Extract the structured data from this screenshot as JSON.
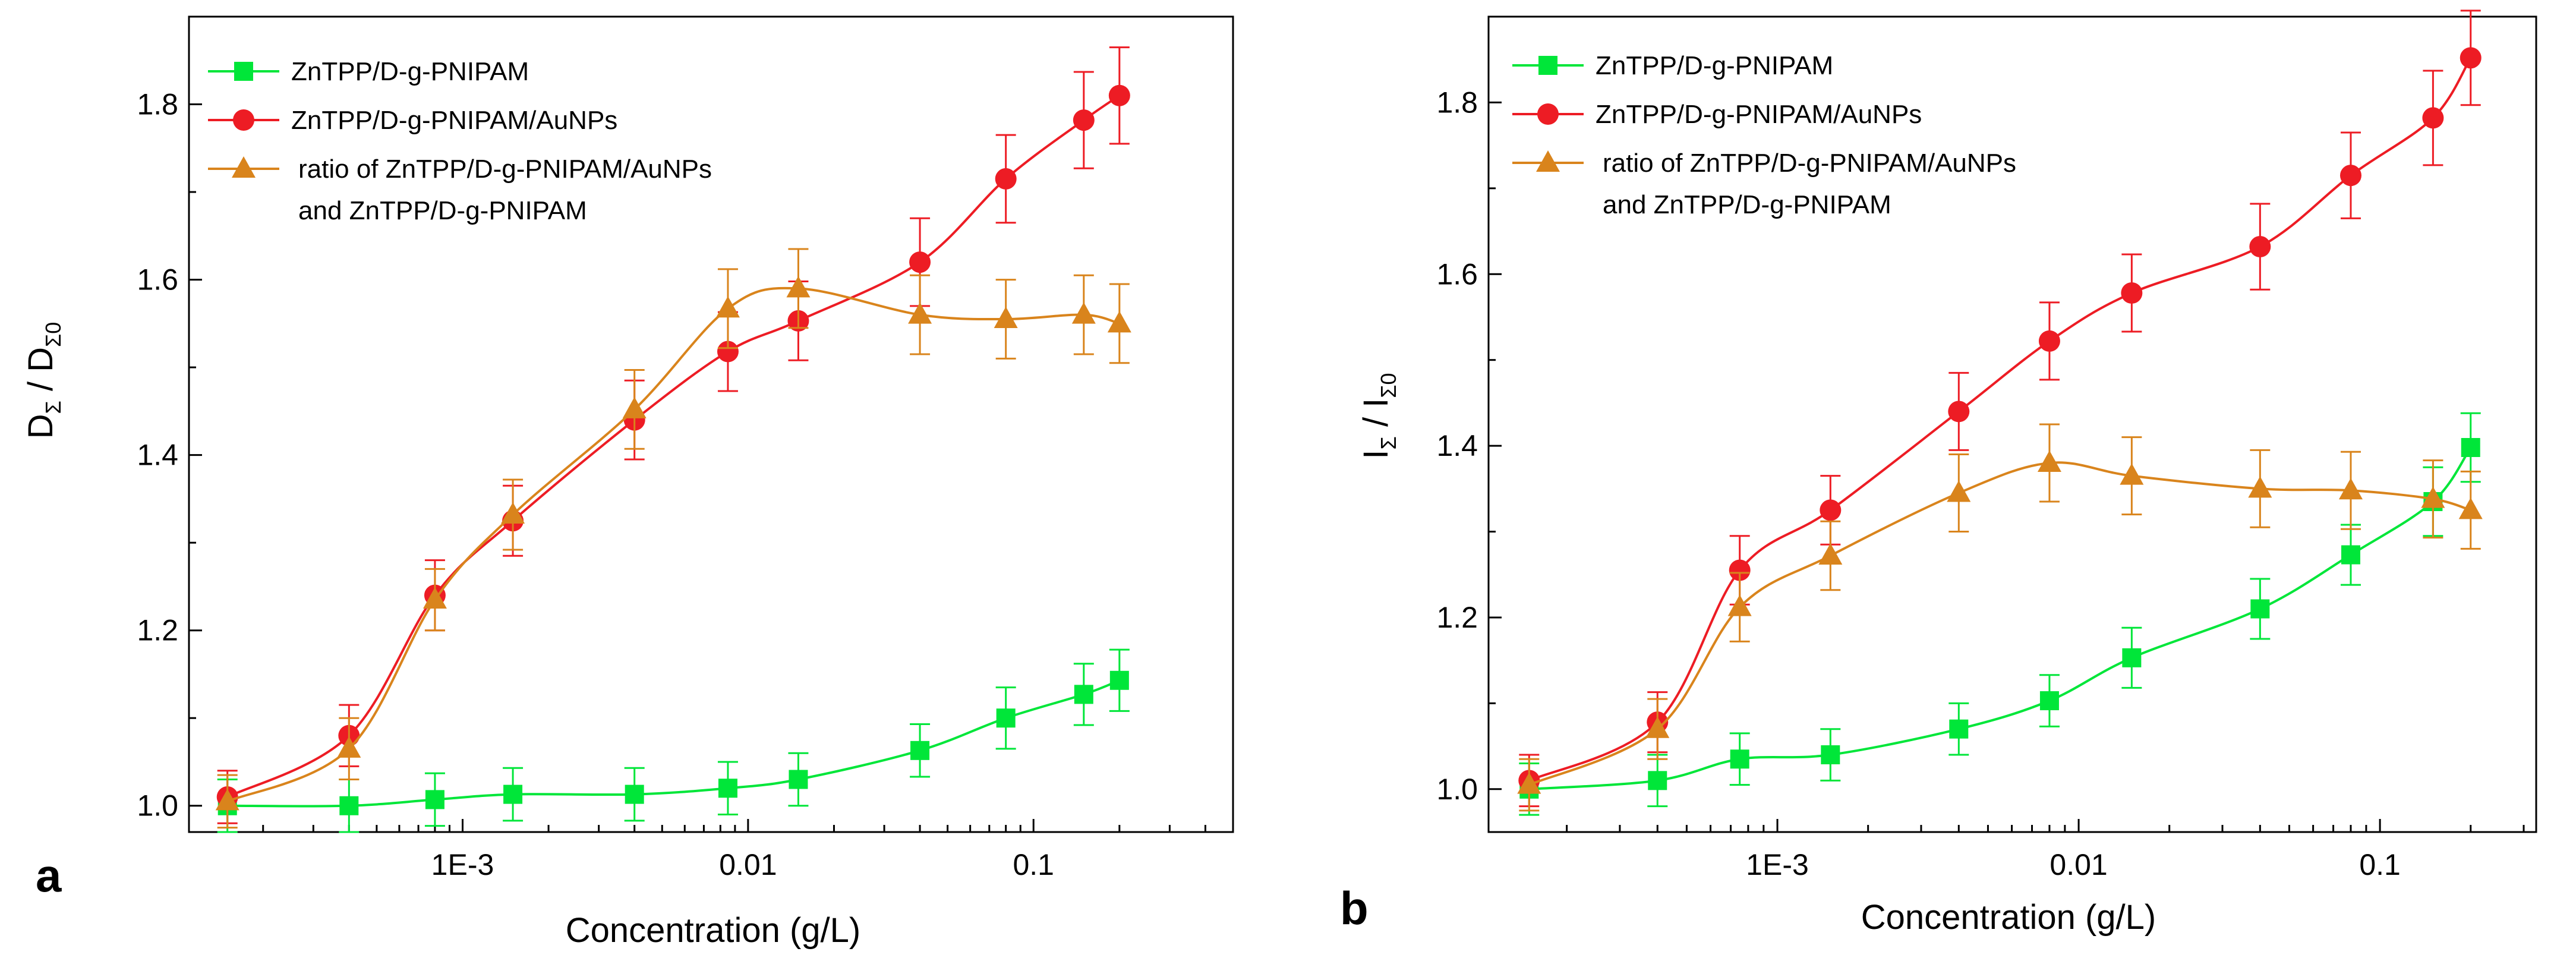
{
  "colors": {
    "green": "#00e639",
    "red": "#ed1c24",
    "orange": "#d9841c",
    "axis": "#000000"
  },
  "chart_data": [
    {
      "panel_label": "a",
      "type": "line",
      "xscale": "log",
      "xlabel": "Concentration (g/L)",
      "ylabel": {
        "main": "D",
        "sub": "Σ",
        "sep": " / ",
        "main2": "D",
        "sub2": "Σ0"
      },
      "xlim": [
        0.00011,
        0.5
      ],
      "ylim": [
        0.97,
        1.9
      ],
      "yticks": [
        1.0,
        1.2,
        1.4,
        1.6,
        1.8
      ],
      "ytick_labels": [
        "1.0",
        "1.2",
        "1.4",
        "1.6",
        "1.8"
      ],
      "xticks": [
        0.001,
        0.01,
        0.1
      ],
      "xtick_labels": [
        "1E-3",
        "0.01",
        "0.1"
      ],
      "legend_position": "top-left",
      "x": [
        0.00015,
        0.0004,
        0.0008,
        0.0015,
        0.004,
        0.0085,
        0.015,
        0.04,
        0.08,
        0.15,
        0.2
      ],
      "series": [
        {
          "name": "ZnTPP/D-g-PNIPAM",
          "legend_lines": [
            "ZnTPP/D-g-PNIPAM"
          ],
          "color": "green",
          "marker": "square",
          "values": [
            1.0,
            1.0,
            1.007,
            1.013,
            1.013,
            1.02,
            1.03,
            1.063,
            1.1,
            1.127,
            1.143
          ],
          "errors": [
            0.03,
            0.03,
            0.03,
            0.03,
            0.03,
            0.03,
            0.03,
            0.03,
            0.035,
            0.035,
            0.035
          ]
        },
        {
          "name": "ZnTPP/D-g-PNIPAM/AuNPs",
          "legend_lines": [
            "ZnTPP/D-g-PNIPAM/AuNPs"
          ],
          "color": "red",
          "marker": "circle",
          "values": [
            1.01,
            1.08,
            1.24,
            1.325,
            1.44,
            1.518,
            1.553,
            1.62,
            1.715,
            1.782,
            1.81
          ],
          "errors": [
            0.03,
            0.035,
            0.04,
            0.04,
            0.045,
            0.045,
            0.045,
            0.05,
            0.05,
            0.055,
            0.055
          ]
        },
        {
          "name": "ratio of ZnTPP/D-g-PNIPAM/AuNPs and ZnTPP/D-g-PNIPAM",
          "legend_lines": [
            "ratio of ZnTPP/D-g-PNIPAM/AuNPs",
            "and ZnTPP/D-g-PNIPAM"
          ],
          "color": "orange",
          "marker": "triangle",
          "values": [
            1.005,
            1.065,
            1.235,
            1.332,
            1.452,
            1.567,
            1.59,
            1.56,
            1.555,
            1.56,
            1.55
          ],
          "errors": [
            0.03,
            0.035,
            0.035,
            0.04,
            0.045,
            0.045,
            0.045,
            0.045,
            0.045,
            0.045,
            0.045
          ]
        }
      ]
    },
    {
      "panel_label": "b",
      "type": "line",
      "xscale": "log",
      "xlabel": "Concentration (g/L)",
      "ylabel": {
        "main": "I",
        "sub": "Σ",
        "sep": " / ",
        "main2": "I",
        "sub2": "Σ0"
      },
      "xlim": [
        0.00011,
        0.33
      ],
      "ylim": [
        0.95,
        1.9
      ],
      "yticks": [
        1.0,
        1.2,
        1.4,
        1.6,
        1.8
      ],
      "ytick_labels": [
        "1.0",
        "1.2",
        "1.4",
        "1.6",
        "1.8"
      ],
      "xticks": [
        0.001,
        0.01,
        0.1
      ],
      "xtick_labels": [
        "1E-3",
        "0.01",
        "0.1"
      ],
      "legend_position": "top-left",
      "x": [
        0.00015,
        0.0004,
        0.00075,
        0.0015,
        0.004,
        0.008,
        0.015,
        0.04,
        0.08,
        0.15,
        0.2
      ],
      "series": [
        {
          "name": "ZnTPP/D-g-PNIPAM",
          "legend_lines": [
            "ZnTPP/D-g-PNIPAM"
          ],
          "color": "green",
          "marker": "square",
          "values": [
            1.0,
            1.01,
            1.035,
            1.04,
            1.07,
            1.103,
            1.153,
            1.21,
            1.273,
            1.335,
            1.398
          ],
          "errors": [
            0.03,
            0.03,
            0.03,
            0.03,
            0.03,
            0.03,
            0.035,
            0.035,
            0.035,
            0.04,
            0.04
          ]
        },
        {
          "name": "ZnTPP/D-g-PNIPAM/AuNPs",
          "legend_lines": [
            "ZnTPP/D-g-PNIPAM/AuNPs"
          ],
          "color": "red",
          "marker": "circle",
          "values": [
            1.01,
            1.078,
            1.255,
            1.325,
            1.44,
            1.522,
            1.578,
            1.632,
            1.715,
            1.782,
            1.852
          ],
          "errors": [
            0.03,
            0.035,
            0.04,
            0.04,
            0.045,
            0.045,
            0.045,
            0.05,
            0.05,
            0.055,
            0.055
          ]
        },
        {
          "name": "ratio of ZnTPP/D-g-PNIPAM/AuNPs and ZnTPP/D-g-PNIPAM",
          "legend_lines": [
            "ratio of ZnTPP/D-g-PNIPAM/AuNPs",
            "and ZnTPP/D-g-PNIPAM"
          ],
          "color": "orange",
          "marker": "triangle",
          "values": [
            1.005,
            1.07,
            1.212,
            1.272,
            1.345,
            1.38,
            1.365,
            1.35,
            1.348,
            1.338,
            1.325
          ],
          "errors": [
            0.03,
            0.035,
            0.04,
            0.04,
            0.045,
            0.045,
            0.045,
            0.045,
            0.045,
            0.045,
            0.045
          ]
        }
      ]
    }
  ]
}
